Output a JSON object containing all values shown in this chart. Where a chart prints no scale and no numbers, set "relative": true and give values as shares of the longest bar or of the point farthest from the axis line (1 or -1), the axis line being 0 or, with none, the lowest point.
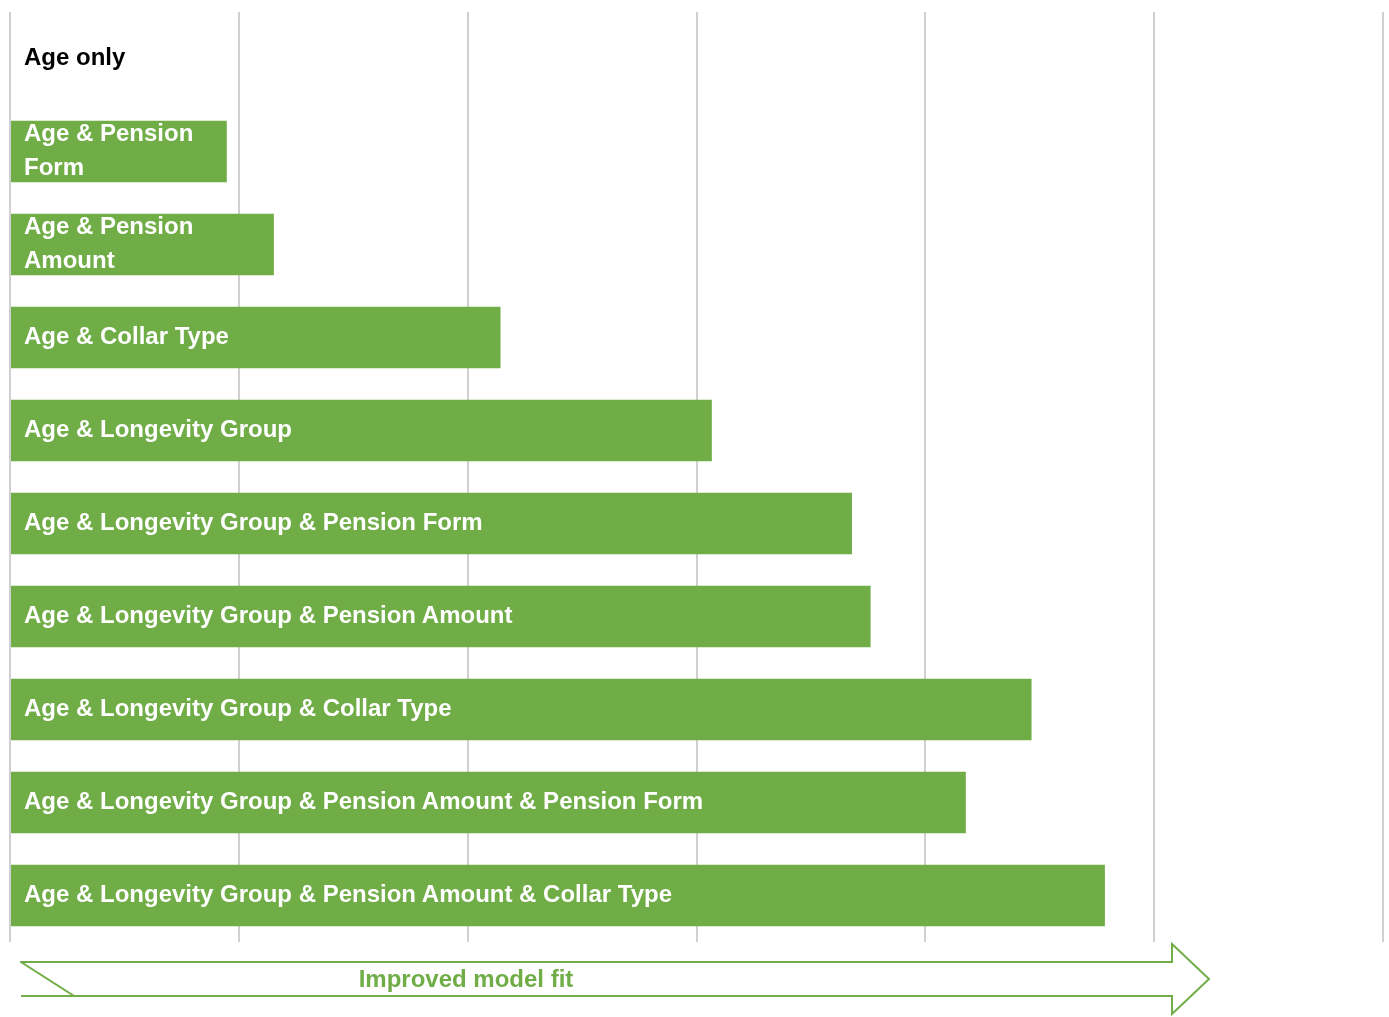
{
  "chart_data": {
    "type": "bar",
    "orientation": "horizontal",
    "relative": true,
    "grid": "x",
    "legend": false,
    "color": "#70ad47",
    "categories": [
      "Age only",
      "Age & Pension Form",
      "Age & Pension Amount",
      "Age & Collar Type",
      "Age & Longevity Group",
      "Age & Longevity Group & Pension Form",
      "Age & Longevity Group & Pension Amount",
      "Age & Longevity Group & Collar Type",
      "Age & Longevity Group & Pension Amount & Pension Form",
      "Age & Longevity Group & Pension Amount & Collar Type"
    ],
    "values": [
      0,
      0.198,
      0.241,
      0.448,
      0.641,
      0.769,
      0.786,
      0.933,
      0.873,
      1
    ],
    "annotations": [
      "Improved model fit"
    ]
  }
}
